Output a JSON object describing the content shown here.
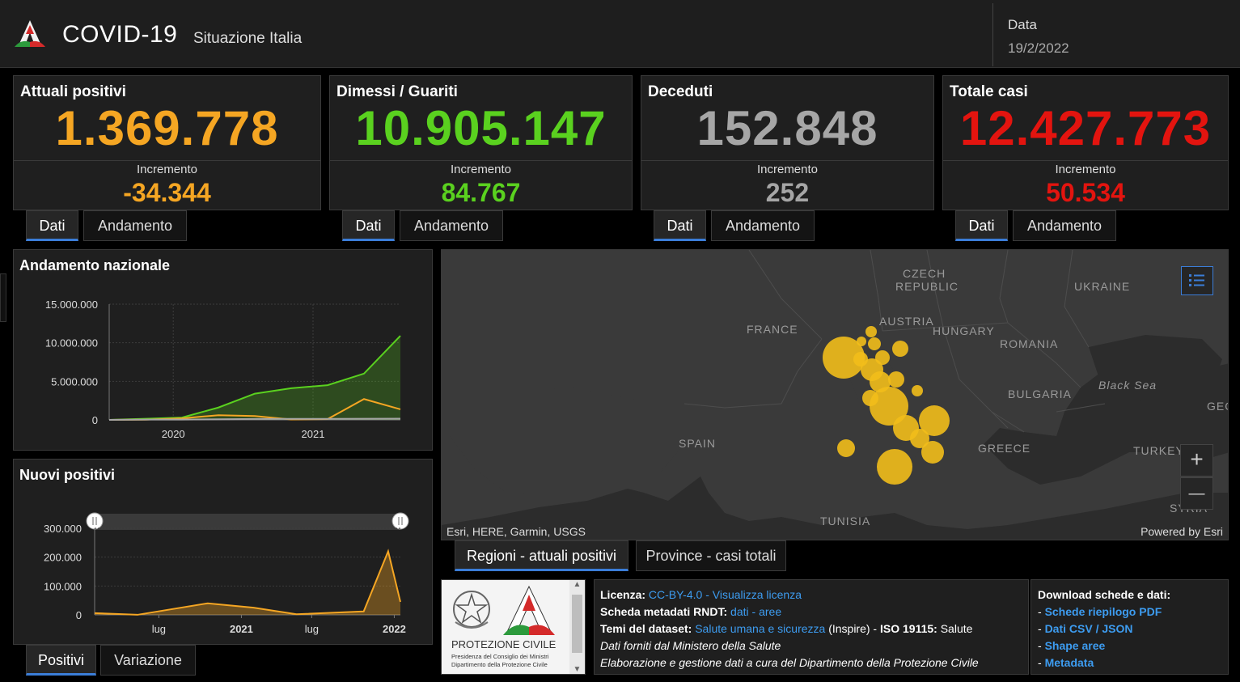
{
  "header": {
    "title": "COVID-19",
    "subtitle": "Situazione Italia",
    "date_label": "Data",
    "date_value": "19/2/2022"
  },
  "kpis": [
    {
      "title": "Attuali positivi",
      "value": "1.369.778",
      "inc_label": "Incremento",
      "inc_value": "-34.344",
      "color": "#f5a623"
    },
    {
      "title": "Dimessi / Guariti",
      "value": "10.905.147",
      "inc_label": "Incremento",
      "inc_value": "84.767",
      "color": "#5ad11f"
    },
    {
      "title": "Deceduti",
      "value": "152.848",
      "inc_label": "Incremento",
      "inc_value": "252",
      "color": "#a6a6a6"
    },
    {
      "title": "Totale casi",
      "value": "12.427.773",
      "inc_label": "Incremento",
      "inc_value": "50.534",
      "color": "#e3140f"
    }
  ],
  "kpi_tabs": {
    "dati": "Dati",
    "andamento": "Andamento"
  },
  "andamento": {
    "title": "Andamento nazionale",
    "chart_data": {
      "type": "area",
      "title": "Andamento nazionale",
      "x": [
        "2020-02",
        "2020-06",
        "2020-10",
        "2021-01",
        "2021-04",
        "2021-07",
        "2021-10",
        "2022-01",
        "2022-02"
      ],
      "x_tick_labels": [
        "2020",
        "2021"
      ],
      "y_tick_labels": [
        "0",
        "5.000.000",
        "10.000.000",
        "15.000.000"
      ],
      "ylim": [
        0,
        15000000
      ],
      "series": [
        {
          "name": "Dimessi / Guariti",
          "color": "#5ad11f",
          "values": [
            0,
            150000,
            300000,
            1600000,
            3400000,
            4100000,
            4500000,
            6000000,
            10905147
          ]
        },
        {
          "name": "Attuali positivi",
          "color": "#f5a623",
          "values": [
            0,
            30000,
            200000,
            600000,
            500000,
            50000,
            100000,
            2700000,
            1369778
          ]
        },
        {
          "name": "Deceduti",
          "color": "#a6a6a6",
          "values": [
            0,
            35000,
            38000,
            75000,
            115000,
            127000,
            131000,
            140000,
            152848
          ]
        }
      ]
    }
  },
  "nuovi": {
    "title": "Nuovi positivi",
    "chart_data": {
      "type": "area",
      "title": "Nuovi positivi",
      "x": [
        "2020-03",
        "2020-07",
        "2020-11",
        "2021-03",
        "2021-07",
        "2021-11",
        "2022-01",
        "2022-02"
      ],
      "x_tick_labels": [
        "lug",
        "2021",
        "lug",
        "2022"
      ],
      "y_tick_labels": [
        "0",
        "100.000",
        "200.000",
        "300.000"
      ],
      "ylim": [
        0,
        300000
      ],
      "series": [
        {
          "name": "Nuovi positivi",
          "color": "#f5a623",
          "values": [
            6000,
            200,
            40000,
            25000,
            2000,
            12000,
            220000,
            45000
          ]
        }
      ]
    },
    "tabs": {
      "positivi": "Positivi",
      "variazione": "Variazione"
    }
  },
  "map": {
    "labels": [
      "CZECH",
      "REPUBLIC",
      "UKRAINE",
      "FRANCE",
      "AUSTRIA",
      "HUNGARY",
      "ROMANIA",
      "Black Sea",
      "BULGARIA",
      "GEO",
      "SPAIN",
      "GREECE",
      "TURKEY",
      "TUNISIA",
      "SYRIA"
    ],
    "attribution": "Esri, HERE, Garmin, USGS",
    "powered": "Powered by Esri",
    "zoom_in": "+",
    "zoom_out": "—",
    "tabs": {
      "regioni": "Regioni - attuali positivi",
      "province": "Province - casi totali"
    },
    "bubble_color": "#f2be1b"
  },
  "footer": {
    "logo_text": "PROTEZIONE CIVILE",
    "logo_sub1": "Presidenza del Consiglio dei Ministri",
    "logo_sub2": "Dipartimento della Protezione Civile",
    "licenza_label": "Licenza:",
    "licenza_value": "CC-BY-4.0",
    "licenza_sep": " - ",
    "licenza_link": "Visualizza licenza",
    "scheda_label": "Scheda metadati RNDT:",
    "scheda_dati": "dati",
    "scheda_sep": " - ",
    "scheda_aree": "aree",
    "temi_label": "Temi del dataset:",
    "temi_link": "Salute umana e sicurezza",
    "temi_inspire": " (Inspire) - ",
    "iso_label": "ISO 19115:",
    "iso_value": " Salute",
    "fonte": "Dati forniti dal Ministero della Salute",
    "elaborazione": "Elaborazione e gestione dati a cura del Dipartimento della Protezione Civile",
    "download_title": "Download schede e dati:",
    "download_links": [
      "Schede riepilogo PDF",
      "Dati CSV / JSON",
      "Shape aree",
      "Metadata"
    ]
  }
}
